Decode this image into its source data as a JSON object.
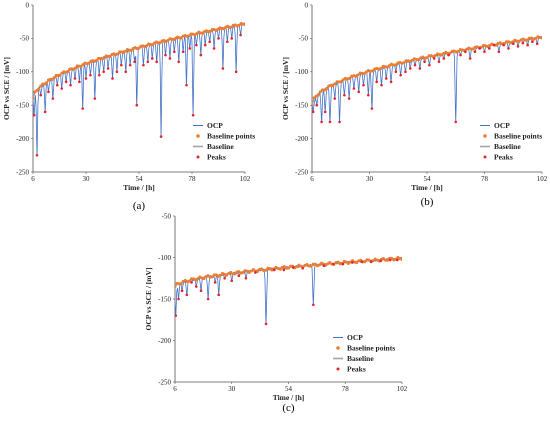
{
  "figure": {
    "panel_labels": [
      "(a)",
      "(b)",
      "(c)"
    ]
  },
  "colors": {
    "ocp": "#4472c4",
    "baseline_points": "#ed7d31",
    "baseline": "#a5a5a5",
    "peaks": "#e8212e",
    "axis": "#555555"
  },
  "chart_data": [
    {
      "type": "line",
      "panel": "(a)",
      "xlabel": "Time / [h]",
      "ylabel": "OCP vs SCE / [mV]",
      "xlim": [
        6,
        102
      ],
      "ylim": [
        -250,
        0
      ],
      "xticks": [
        6,
        30,
        54,
        78,
        102
      ],
      "yticks": [
        0,
        -50,
        -100,
        -150,
        -200,
        -250
      ],
      "legend": {
        "placement": "right-middle",
        "entries": [
          "OCP",
          "Baseline points",
          "Baseline",
          "Peaks"
        ]
      },
      "baseline": {
        "start": -140,
        "end": -28,
        "curvature": 0.55
      },
      "peaks": [
        {
          "x": 6.5,
          "y": -165
        },
        {
          "x": 7.8,
          "y": -225
        },
        {
          "x": 9.5,
          "y": -135
        },
        {
          "x": 11.5,
          "y": -160
        },
        {
          "x": 13,
          "y": -130
        },
        {
          "x": 15,
          "y": -140
        },
        {
          "x": 17,
          "y": -120
        },
        {
          "x": 19,
          "y": -125
        },
        {
          "x": 21,
          "y": -115
        },
        {
          "x": 23,
          "y": -120
        },
        {
          "x": 25,
          "y": -110
        },
        {
          "x": 27,
          "y": -115
        },
        {
          "x": 28.5,
          "y": -155
        },
        {
          "x": 30,
          "y": -110
        },
        {
          "x": 32,
          "y": -105
        },
        {
          "x": 34,
          "y": -140
        },
        {
          "x": 36,
          "y": -105
        },
        {
          "x": 38,
          "y": -100
        },
        {
          "x": 40,
          "y": -95
        },
        {
          "x": 42,
          "y": -110
        },
        {
          "x": 44,
          "y": -100
        },
        {
          "x": 46,
          "y": -90
        },
        {
          "x": 48,
          "y": -100
        },
        {
          "x": 50,
          "y": -90
        },
        {
          "x": 52,
          "y": -85
        },
        {
          "x": 53,
          "y": -150
        },
        {
          "x": 56,
          "y": -90
        },
        {
          "x": 58,
          "y": -85
        },
        {
          "x": 60,
          "y": -80
        },
        {
          "x": 62,
          "y": -85
        },
        {
          "x": 64,
          "y": -197
        },
        {
          "x": 66,
          "y": -75
        },
        {
          "x": 68,
          "y": -80
        },
        {
          "x": 70,
          "y": -70
        },
        {
          "x": 72,
          "y": -85
        },
        {
          "x": 74,
          "y": -70
        },
        {
          "x": 75.5,
          "y": -120
        },
        {
          "x": 77,
          "y": -65
        },
        {
          "x": 78.5,
          "y": -165
        },
        {
          "x": 80,
          "y": -60
        },
        {
          "x": 82,
          "y": -75
        },
        {
          "x": 84,
          "y": -60
        },
        {
          "x": 86,
          "y": -55
        },
        {
          "x": 88,
          "y": -65
        },
        {
          "x": 90,
          "y": -50
        },
        {
          "x": 92,
          "y": -95
        },
        {
          "x": 94,
          "y": -55
        },
        {
          "x": 96,
          "y": -50
        },
        {
          "x": 98,
          "y": -100
        },
        {
          "x": 100,
          "y": -45
        }
      ]
    },
    {
      "type": "line",
      "panel": "(b)",
      "xlabel": "Time / [h]",
      "ylabel": "OCP vs SCE / [mV]",
      "xlim": [
        6,
        102
      ],
      "ylim": [
        -250,
        0
      ],
      "xticks": [
        6,
        30,
        54,
        78,
        102
      ],
      "yticks": [
        0,
        -50,
        -100,
        -150,
        -200,
        -250
      ],
      "legend": {
        "placement": "right-middle",
        "entries": [
          "OCP",
          "Baseline points",
          "Baseline",
          "Peaks"
        ]
      },
      "baseline": {
        "start": -150,
        "end": -48,
        "curvature": 0.5
      },
      "peaks": [
        {
          "x": 6.5,
          "y": -160
        },
        {
          "x": 8,
          "y": -150
        },
        {
          "x": 10,
          "y": -175
        },
        {
          "x": 11.5,
          "y": -160
        },
        {
          "x": 13.5,
          "y": -175
        },
        {
          "x": 15.5,
          "y": -140
        },
        {
          "x": 17.5,
          "y": -175
        },
        {
          "x": 19.5,
          "y": -135
        },
        {
          "x": 21.5,
          "y": -140
        },
        {
          "x": 23.5,
          "y": -125
        },
        {
          "x": 25.5,
          "y": -130
        },
        {
          "x": 27.5,
          "y": -120
        },
        {
          "x": 29.5,
          "y": -135
        },
        {
          "x": 31,
          "y": -155
        },
        {
          "x": 33,
          "y": -115
        },
        {
          "x": 35,
          "y": -120
        },
        {
          "x": 37,
          "y": -110
        },
        {
          "x": 39,
          "y": -115
        },
        {
          "x": 41,
          "y": -100
        },
        {
          "x": 43,
          "y": -105
        },
        {
          "x": 45,
          "y": -100
        },
        {
          "x": 47,
          "y": -95
        },
        {
          "x": 49,
          "y": -90
        },
        {
          "x": 51,
          "y": -95
        },
        {
          "x": 53,
          "y": -85
        },
        {
          "x": 55,
          "y": -90
        },
        {
          "x": 57,
          "y": -80
        },
        {
          "x": 59,
          "y": -85
        },
        {
          "x": 61,
          "y": -80
        },
        {
          "x": 63,
          "y": -75
        },
        {
          "x": 66,
          "y": -175
        },
        {
          "x": 68,
          "y": -75
        },
        {
          "x": 70,
          "y": -70
        },
        {
          "x": 72,
          "y": -80
        },
        {
          "x": 74,
          "y": -70
        },
        {
          "x": 76,
          "y": -65
        },
        {
          "x": 78,
          "y": -70
        },
        {
          "x": 80,
          "y": -65
        },
        {
          "x": 82,
          "y": -60
        },
        {
          "x": 84,
          "y": -70
        },
        {
          "x": 86,
          "y": -60
        },
        {
          "x": 88,
          "y": -65
        },
        {
          "x": 90,
          "y": -58
        },
        {
          "x": 92,
          "y": -62
        },
        {
          "x": 94,
          "y": -57
        },
        {
          "x": 96,
          "y": -60
        },
        {
          "x": 98,
          "y": -55
        },
        {
          "x": 100,
          "y": -58
        }
      ]
    },
    {
      "type": "line",
      "panel": "(c)",
      "xlabel": "Time / [h]",
      "ylabel": "OCP vs SCE / [mV]",
      "xlim": [
        6,
        102
      ],
      "ylim": [
        -250,
        -50
      ],
      "xticks": [
        6,
        30,
        54,
        78,
        102
      ],
      "yticks": [
        -50,
        -100,
        -150,
        -200,
        -250
      ],
      "legend": {
        "placement": "right-middle",
        "entries": [
          "OCP",
          "Baseline points",
          "Baseline",
          "Peaks"
        ]
      },
      "baseline": {
        "start": -135,
        "end": -101,
        "curvature": 0.55
      },
      "peaks": [
        {
          "x": 6.3,
          "y": -170
        },
        {
          "x": 7.5,
          "y": -150
        },
        {
          "x": 9,
          "y": -140
        },
        {
          "x": 11,
          "y": -145
        },
        {
          "x": 13,
          "y": -130
        },
        {
          "x": 15,
          "y": -135
        },
        {
          "x": 17,
          "y": -140
        },
        {
          "x": 20,
          "y": -150
        },
        {
          "x": 23,
          "y": -130
        },
        {
          "x": 24.5,
          "y": -145
        },
        {
          "x": 27,
          "y": -125
        },
        {
          "x": 30,
          "y": -128
        },
        {
          "x": 33,
          "y": -122
        },
        {
          "x": 36,
          "y": -125
        },
        {
          "x": 40,
          "y": -118
        },
        {
          "x": 44.5,
          "y": -180
        },
        {
          "x": 48,
          "y": -115
        },
        {
          "x": 52,
          "y": -115
        },
        {
          "x": 56,
          "y": -112
        },
        {
          "x": 60,
          "y": -113
        },
        {
          "x": 64.5,
          "y": -157
        },
        {
          "x": 69,
          "y": -110
        },
        {
          "x": 73,
          "y": -108
        },
        {
          "x": 77,
          "y": -108
        },
        {
          "x": 81,
          "y": -106
        },
        {
          "x": 85,
          "y": -105
        },
        {
          "x": 89,
          "y": -105
        },
        {
          "x": 93,
          "y": -104
        },
        {
          "x": 97,
          "y": -103
        },
        {
          "x": 100,
          "y": -103
        }
      ]
    }
  ]
}
